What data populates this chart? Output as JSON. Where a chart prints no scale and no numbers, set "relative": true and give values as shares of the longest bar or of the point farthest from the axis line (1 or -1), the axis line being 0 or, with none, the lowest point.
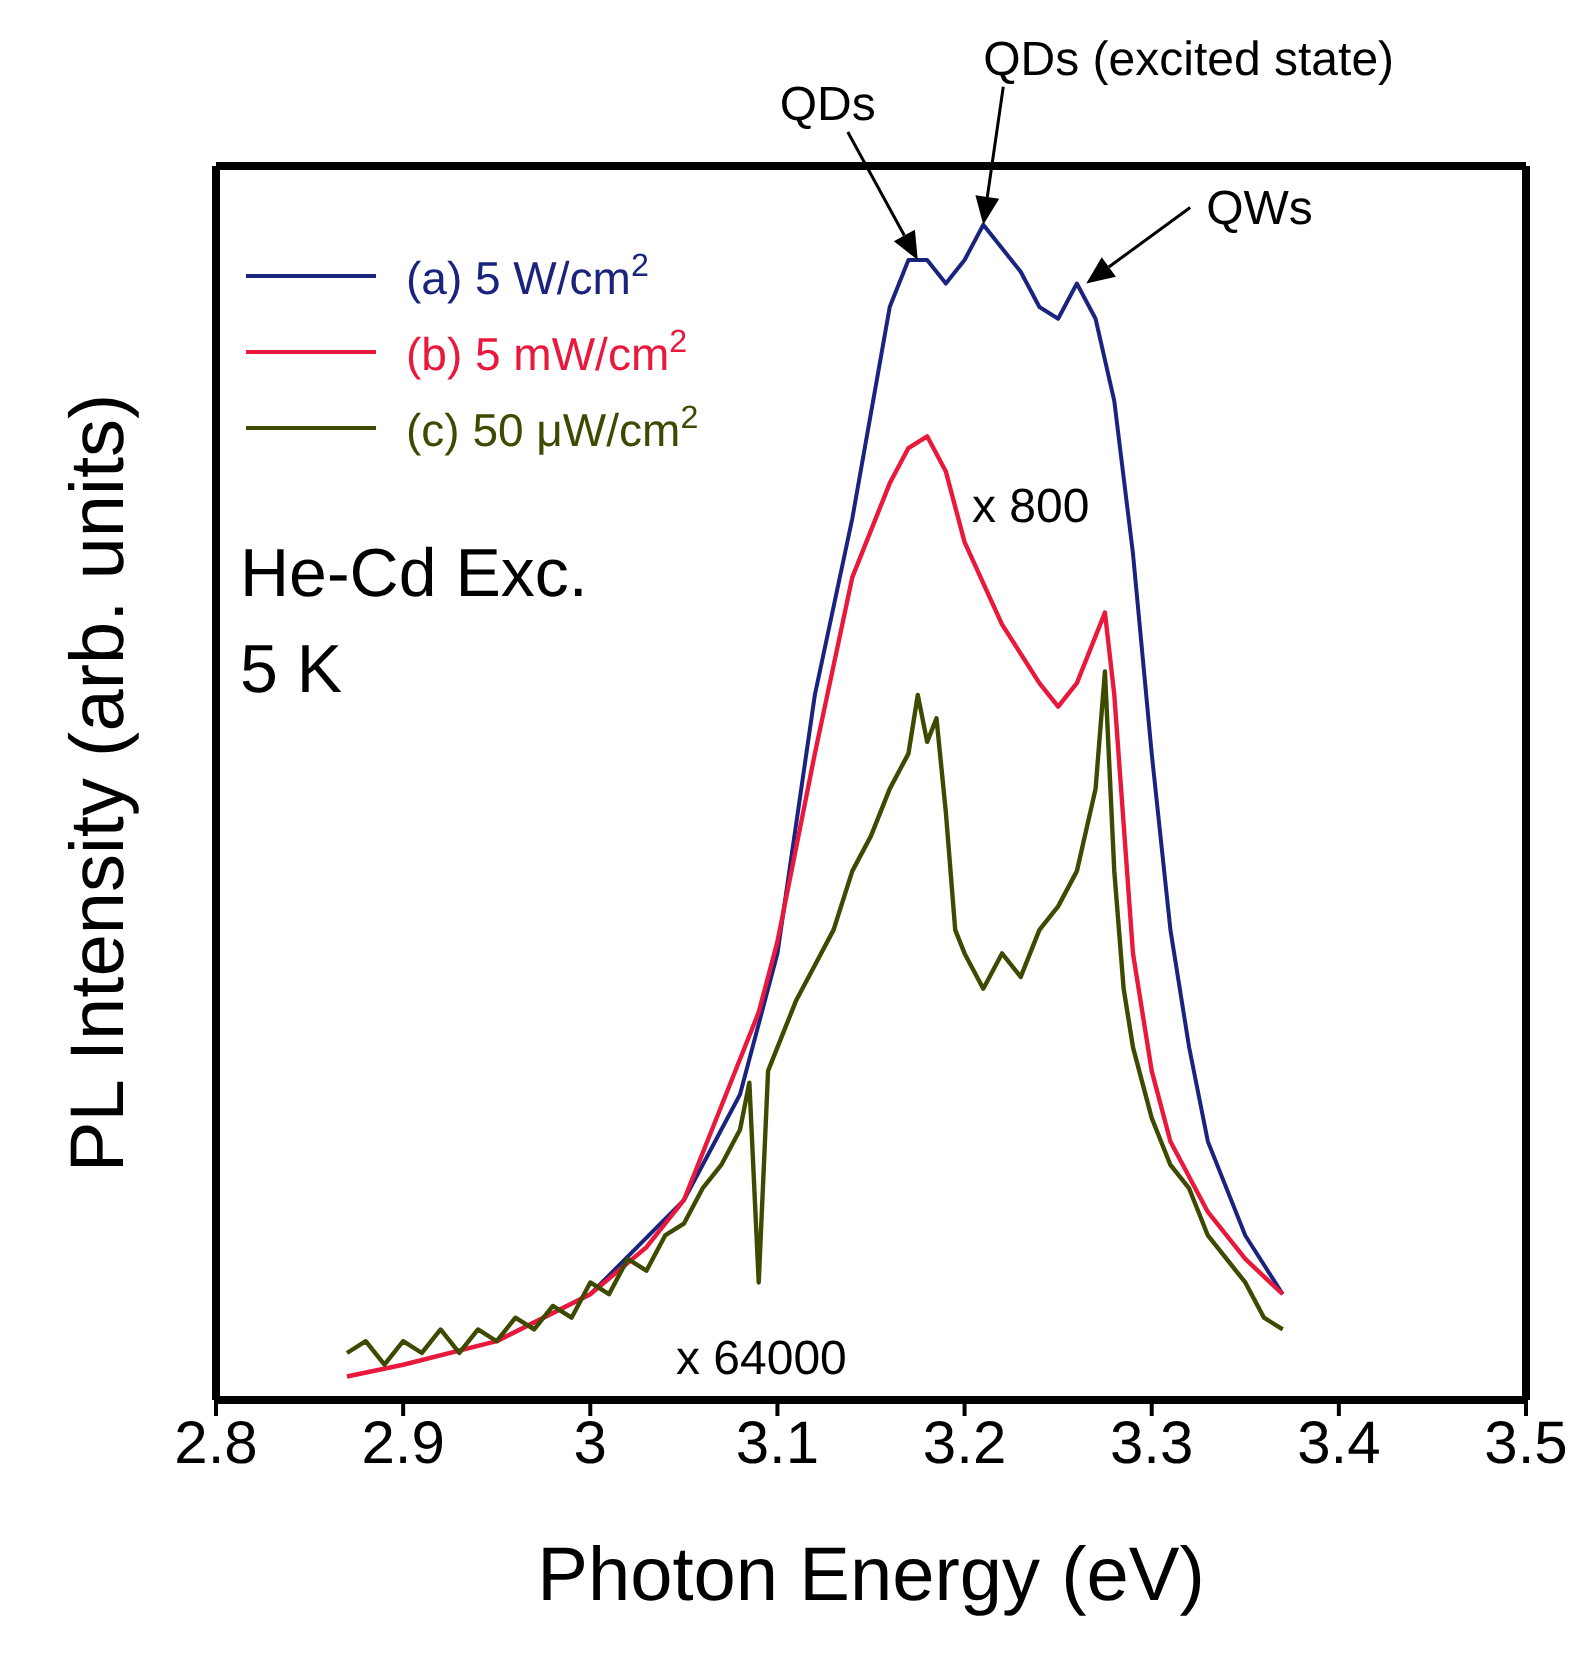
{
  "chart_data": {
    "type": "line",
    "relative": true,
    "xlabel": "Photon Energy (eV)",
    "ylabel": "PL Intensity (arb. units)",
    "xlim": [
      2.8,
      3.5
    ],
    "xticks": [
      2.8,
      2.9,
      3.0,
      3.1,
      3.2,
      3.3,
      3.4,
      3.5
    ],
    "legend": "top left",
    "marker": "none",
    "line_style": "solid",
    "annotations": [
      {
        "text": "QDs",
        "x": 3.175,
        "y": 0.97
      },
      {
        "text": "QDs (excited state)",
        "x": 3.21,
        "y": 1.0
      },
      {
        "text": "QWs",
        "x": 3.265,
        "y": 0.95
      },
      "He-Cd Exc.",
      "5 K",
      "x 800",
      "x 64000"
    ],
    "series": [
      {
        "name": "(a) 5 W/cm$^{2}$",
        "color": "#1a237e",
        "x": [
          2.95,
          3.0,
          3.05,
          3.08,
          3.1,
          3.12,
          3.14,
          3.16,
          3.17,
          3.18,
          3.19,
          3.2,
          3.21,
          3.22,
          3.23,
          3.24,
          3.25,
          3.26,
          3.27,
          3.28,
          3.29,
          3.3,
          3.31,
          3.32,
          3.33,
          3.35,
          3.37
        ],
        "values": [
          0.05,
          0.09,
          0.17,
          0.26,
          0.38,
          0.6,
          0.75,
          0.93,
          0.97,
          0.97,
          0.95,
          0.97,
          1.0,
          0.98,
          0.96,
          0.93,
          0.92,
          0.95,
          0.92,
          0.85,
          0.72,
          0.55,
          0.4,
          0.3,
          0.22,
          0.14,
          0.09
        ]
      },
      {
        "name": "(b) 5 mW/cm$^{2}$",
        "color": "#e8193c",
        "x": [
          2.87,
          2.9,
          2.95,
          3.0,
          3.03,
          3.05,
          3.07,
          3.09,
          3.1,
          3.12,
          3.14,
          3.16,
          3.17,
          3.18,
          3.19,
          3.2,
          3.22,
          3.24,
          3.25,
          3.26,
          3.27,
          3.275,
          3.28,
          3.29,
          3.3,
          3.31,
          3.33,
          3.35,
          3.37
        ],
        "values": [
          0.02,
          0.03,
          0.05,
          0.09,
          0.13,
          0.17,
          0.25,
          0.33,
          0.39,
          0.55,
          0.7,
          0.78,
          0.81,
          0.82,
          0.79,
          0.73,
          0.66,
          0.61,
          0.59,
          0.61,
          0.65,
          0.67,
          0.6,
          0.38,
          0.28,
          0.22,
          0.16,
          0.12,
          0.09
        ]
      },
      {
        "name": "(c) 50 μW/cm$^{2}$",
        "color": "#3d4a00",
        "x": [
          2.87,
          2.88,
          2.89,
          2.9,
          2.91,
          2.92,
          2.93,
          2.94,
          2.95,
          2.96,
          2.97,
          2.98,
          2.99,
          3.0,
          3.01,
          3.02,
          3.03,
          3.04,
          3.05,
          3.06,
          3.07,
          3.08,
          3.085,
          3.09,
          3.095,
          3.1,
          3.11,
          3.12,
          3.13,
          3.14,
          3.15,
          3.16,
          3.17,
          3.175,
          3.18,
          3.185,
          3.19,
          3.195,
          3.2,
          3.21,
          3.22,
          3.23,
          3.24,
          3.25,
          3.26,
          3.27,
          3.275,
          3.28,
          3.285,
          3.29,
          3.3,
          3.31,
          3.32,
          3.33,
          3.34,
          3.35,
          3.36,
          3.37
        ],
        "values": [
          0.04,
          0.05,
          0.03,
          0.05,
          0.04,
          0.06,
          0.04,
          0.06,
          0.05,
          0.07,
          0.06,
          0.08,
          0.07,
          0.1,
          0.09,
          0.12,
          0.11,
          0.14,
          0.15,
          0.18,
          0.2,
          0.23,
          0.27,
          0.1,
          0.28,
          0.3,
          0.34,
          0.37,
          0.4,
          0.45,
          0.48,
          0.52,
          0.55,
          0.6,
          0.56,
          0.58,
          0.5,
          0.4,
          0.38,
          0.35,
          0.38,
          0.36,
          0.4,
          0.42,
          0.45,
          0.52,
          0.62,
          0.45,
          0.35,
          0.3,
          0.24,
          0.2,
          0.18,
          0.14,
          0.12,
          0.1,
          0.07,
          0.06
        ]
      }
    ]
  }
}
